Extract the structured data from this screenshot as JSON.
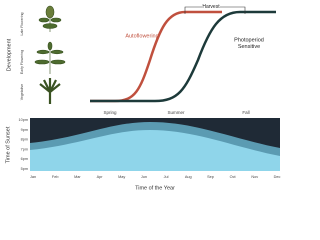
{
  "top": {
    "axis_label": "Development",
    "stages": [
      "Vegetative",
      "Early Flowering",
      "Late Flowering"
    ],
    "harvest": "Harvest",
    "autoflowering": "Autoflowering",
    "photoperiod": [
      "Photoperiod",
      "Sensitive"
    ],
    "seasons": [
      "Spring",
      "Summer",
      "Fall"
    ]
  },
  "bottom": {
    "axis_label": "Time of Sunset",
    "x_label": "Time of the Year",
    "yticks": [
      "10pm",
      "9pm",
      "8pm",
      "7pm",
      "6pm",
      "5pm"
    ],
    "months": [
      "Jan",
      "Feb",
      "Mar",
      "Apr",
      "May",
      "Jun",
      "Jul",
      "Aug",
      "Sep",
      "Oct",
      "Nov",
      "Dec"
    ]
  }
}
